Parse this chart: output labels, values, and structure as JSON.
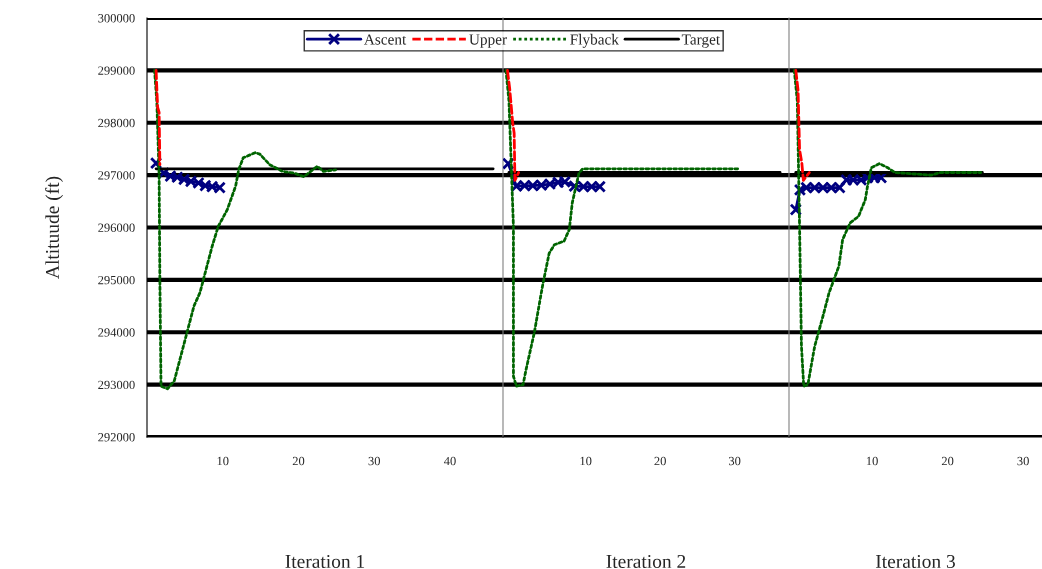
{
  "chart_data": [
    {
      "type": "line",
      "xlabel": "Iteration 1",
      "ylabel": "Altituude (ft)",
      "xlim": [
        0,
        47
      ],
      "xticks": [
        10,
        20,
        30,
        40
      ],
      "ylim": [
        292000,
        300000
      ],
      "yticks": [
        292000,
        293000,
        294000,
        295000,
        296000,
        297000,
        298000,
        299000,
        300000
      ],
      "grid": "y",
      "legend": "top",
      "series": [
        {
          "name": "Ascent",
          "color": "#000080",
          "marker": "cross",
          "line_style": "solid",
          "x": [
            1.2,
            2.2,
            3.1,
            4.0,
            4.9,
            5.8,
            6.8,
            7.7,
            8.6,
            9.6
          ],
          "values": [
            297230,
            297040,
            296980,
            296960,
            296920,
            296880,
            296850,
            296800,
            296780,
            296760
          ]
        },
        {
          "name": "Upper",
          "color": "#ff0000",
          "marker": "none",
          "line_style": "dashed",
          "x": [
            1.2,
            1.4,
            1.6,
            1.7
          ],
          "values": [
            299000,
            298300,
            298200,
            297200
          ]
        },
        {
          "name": "Flyback",
          "color": "#006400",
          "marker": "none",
          "line_style": "dotted",
          "x": [
            1.0,
            1.3,
            1.6,
            1.7,
            1.85,
            2.7,
            3.6,
            6.2,
            7.0,
            8.6,
            9.4,
            10.6,
            11.7,
            12.1,
            12.7,
            14.3,
            14.9,
            16.2,
            17.9,
            19.4,
            20.7,
            22.5,
            23.3,
            24.9
          ],
          "values": [
            299000,
            298400,
            297000,
            295000,
            292970,
            292920,
            293070,
            294500,
            294760,
            295640,
            296020,
            296340,
            296790,
            297100,
            297330,
            297430,
            297400,
            297200,
            297070,
            297040,
            296970,
            297170,
            297070,
            297100
          ]
        },
        {
          "name": "Target",
          "color": "#000000",
          "marker": "none",
          "line_style": "solid",
          "x": [
            1.2,
            45.7
          ],
          "values": [
            297120,
            297120
          ]
        }
      ]
    },
    {
      "type": "line",
      "xlabel": "Iteration 2",
      "xlim": [
        -1.1,
        37.3
      ],
      "xticks": [
        10,
        20,
        30
      ],
      "ylim": [
        292000,
        300000
      ],
      "yticks": [
        292000,
        293000,
        294000,
        295000,
        296000,
        297000,
        298000,
        299000,
        300000
      ],
      "grid": "y",
      "tick_labels": "x",
      "series": [
        {
          "color": "#000080",
          "marker": "cross",
          "line_style": "solid",
          "x": [
            -0.4,
            0.7,
            1.8,
            2.9,
            4.05,
            5.2,
            6.3,
            7.2,
            8.5,
            9.7,
            10.8,
            11.9
          ],
          "values": [
            297220,
            296790,
            296800,
            296800,
            296810,
            296830,
            296860,
            296870,
            296790,
            296780,
            296780,
            296780
          ]
        },
        {
          "color": "#ff0000",
          "marker": "none",
          "line_style": "dashed",
          "x": [
            -0.5,
            -0.2,
            0.2,
            0.4,
            0.5,
            1.0
          ],
          "values": [
            299000,
            298650,
            298000,
            297800,
            296900,
            297050
          ]
        },
        {
          "color": "#006400",
          "marker": "none",
          "line_style": "dotted",
          "x": [
            -0.7,
            -0.3,
            0.3,
            0.3,
            0.7,
            1.6,
            2.0,
            3.1,
            4.2,
            5.1,
            5.8,
            7.1,
            7.8,
            8.2,
            9.1,
            9.6,
            30.5
          ],
          "values": [
            299000,
            298420,
            296020,
            293160,
            292970,
            293000,
            293290,
            293990,
            294880,
            295510,
            295670,
            295740,
            295960,
            296470,
            297040,
            297120,
            297120
          ]
        },
        {
          "color": "#000000",
          "marker": "none",
          "line_style": "solid",
          "x": [
            -0.3,
            36.1
          ],
          "values": [
            297050,
            297050
          ]
        }
      ]
    },
    {
      "type": "line",
      "xlabel": "Iteration 3",
      "xlim": [
        -1.0,
        32.5
      ],
      "xticks": [
        10,
        20,
        30
      ],
      "ylim": [
        292000,
        300000
      ],
      "yticks": [
        292000,
        293000,
        294000,
        295000,
        296000,
        297000,
        298000,
        299000,
        300000
      ],
      "grid": "y",
      "tick_labels": "x",
      "series": [
        {
          "color": "#000080",
          "marker": "cross",
          "line_style": "solid",
          "x": [
            -0.1,
            0.45,
            1.3,
            2.4,
            3.5,
            4.6,
            5.7,
            6.6,
            7.5,
            8.55,
            9.4,
            10.3,
            11.2
          ],
          "values": [
            296340,
            296720,
            296760,
            296760,
            296760,
            296760,
            296760,
            296910,
            296910,
            296910,
            296950,
            296950,
            296950
          ]
        },
        {
          "color": "#ff0000",
          "marker": "none",
          "line_style": "dashed",
          "x": [
            -0.1,
            0.2,
            0.4,
            0.7,
            0.9,
            1.7
          ],
          "values": [
            299000,
            298620,
            297490,
            297230,
            296900,
            297050
          ]
        },
        {
          "color": "#006400",
          "marker": "none",
          "line_style": "dotted",
          "x": [
            -0.3,
            0.1,
            0.4,
            0.65,
            0.95,
            1.5,
            2.4,
            3.5,
            4.3,
            5.6,
            6.1,
            7.1,
            8.2,
            9.1,
            9.4,
            9.9,
            11.0,
            12.1,
            13.0,
            17.8,
            19.1,
            24.4
          ],
          "values": [
            299000,
            298420,
            296020,
            293730,
            292970,
            293000,
            293730,
            294310,
            294750,
            295260,
            295770,
            296090,
            296210,
            296530,
            296790,
            297140,
            297220,
            297140,
            297050,
            297000,
            297050,
            297050
          ]
        },
        {
          "color": "#000000",
          "marker": "none",
          "line_style": "solid",
          "x": [
            -0.1,
            24.6
          ],
          "values": [
            297050,
            297050
          ]
        }
      ]
    }
  ]
}
